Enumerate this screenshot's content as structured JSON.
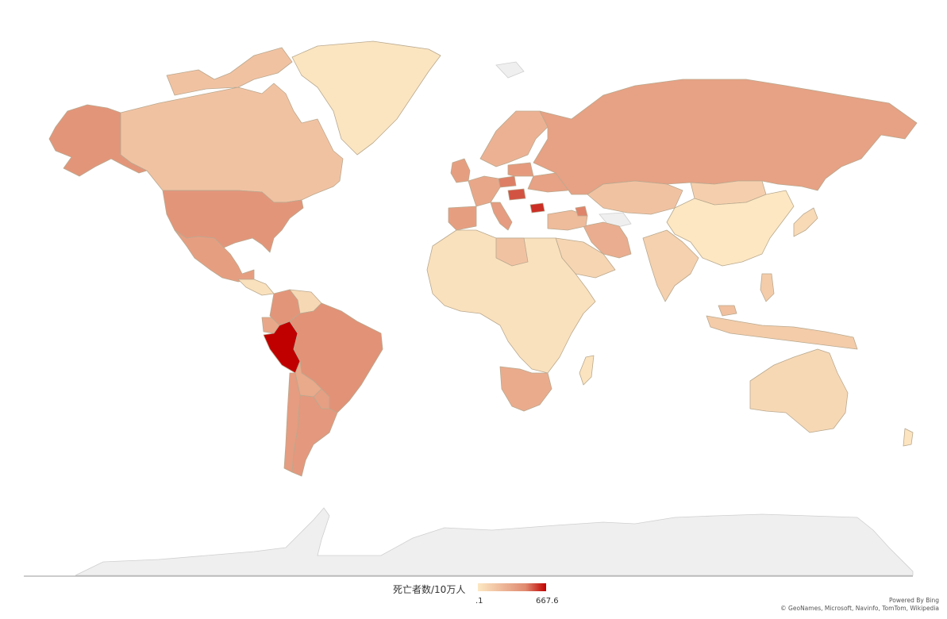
{
  "legend": {
    "title": "死亡者数/10万人",
    "min_label": ".1",
    "max_label": "667.6",
    "min_value": 0.1,
    "max_value": 667.6,
    "color_low": "#fce8c3",
    "color_mid": "#e08a70",
    "color_high": "#c00000"
  },
  "attribution": {
    "line1": "Powered By Bing",
    "line2": "© GeoNames, Microsoft, Navinfo, TomTom, Wikipedia"
  },
  "chart_data": {
    "type": "choropleth",
    "metric": "死亡者数/10万人",
    "scale": [
      0.1,
      667.6
    ],
    "regions": [
      {
        "name": "Peru",
        "value": 667.6
      },
      {
        "name": "Bulgaria",
        "value": 560
      },
      {
        "name": "Hungary",
        "value": 480
      },
      {
        "name": "Czech Republic",
        "value": 390
      },
      {
        "name": "Armenia",
        "value": 380
      },
      {
        "name": "Brazil",
        "value": 320
      },
      {
        "name": "United States",
        "value": 300
      },
      {
        "name": "Colombia",
        "value": 300
      },
      {
        "name": "Argentina",
        "value": 280
      },
      {
        "name": "Mexico",
        "value": 250
      },
      {
        "name": "United Kingdom",
        "value": 250
      },
      {
        "name": "Italy",
        "value": 260
      },
      {
        "name": "Poland",
        "value": 270
      },
      {
        "name": "Russia",
        "value": 230
      },
      {
        "name": "Chile",
        "value": 260
      },
      {
        "name": "Spain",
        "value": 250
      },
      {
        "name": "Paraguay",
        "value": 240
      },
      {
        "name": "Ukraine",
        "value": 230
      },
      {
        "name": "Iran",
        "value": 170
      },
      {
        "name": "South Africa",
        "value": 180
      },
      {
        "name": "Ecuador",
        "value": 200
      },
      {
        "name": "Bolivia",
        "value": 190
      },
      {
        "name": "Turkey",
        "value": 110
      },
      {
        "name": "Canada",
        "value": 80
      },
      {
        "name": "Alaska (US)",
        "value": 300
      },
      {
        "name": "Kazakhstan",
        "value": 80
      },
      {
        "name": "Mongolia",
        "value": 40
      },
      {
        "name": "Saudi Arabia",
        "value": 25
      },
      {
        "name": "Libya",
        "value": 80
      },
      {
        "name": "India",
        "value": 35
      },
      {
        "name": "Indonesia",
        "value": 50
      },
      {
        "name": "Philippines",
        "value": 50
      },
      {
        "name": "Malaysia",
        "value": 90
      },
      {
        "name": "Australia",
        "value": 20
      },
      {
        "name": "New Zealand",
        "value": 2
      },
      {
        "name": "Japan",
        "value": 15
      },
      {
        "name": "China",
        "value": 0.3
      },
      {
        "name": "Greenland",
        "value": 1
      },
      {
        "name": "Venezuela",
        "value": 20
      },
      {
        "name": "Africa (other)",
        "value": 5
      },
      {
        "name": "Madagascar",
        "value": 3
      },
      {
        "name": "Scandinavia",
        "value": 150
      },
      {
        "name": "Western Europe",
        "value": 200
      }
    ]
  }
}
